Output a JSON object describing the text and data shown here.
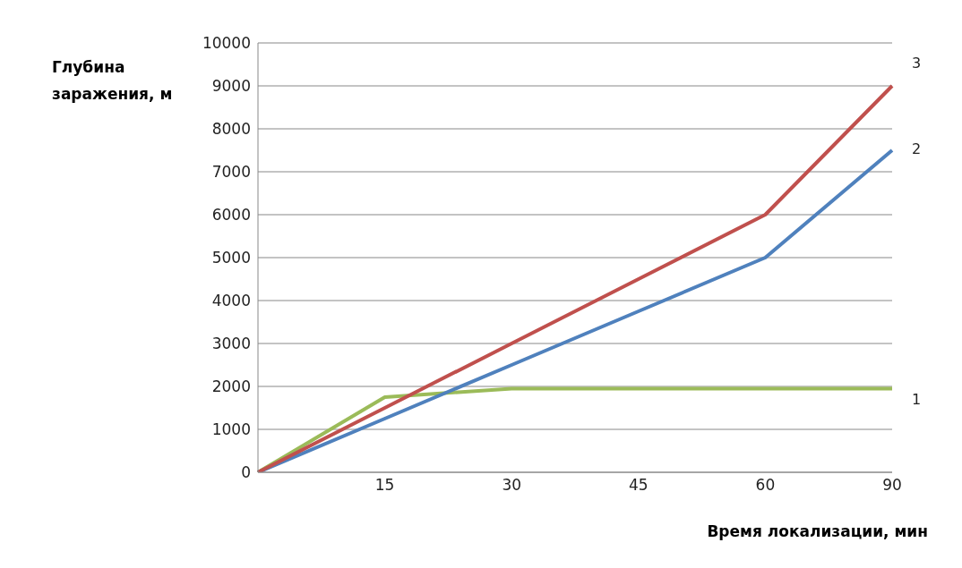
{
  "chart_data": {
    "type": "line",
    "xlabel": "Время локализации, мин",
    "ylabel": "Глубина заражения, м",
    "categories": [
      null,
      "15",
      "30",
      "45",
      "60",
      "90"
    ],
    "series": [
      {
        "name": "1",
        "color": "#9bbb59",
        "values": [
          0,
          1750,
          1950,
          1950,
          1950,
          1950
        ]
      },
      {
        "name": "2",
        "color": "#4f81bd",
        "values": [
          0,
          1250,
          2500,
          3750,
          5000,
          7500
        ]
      },
      {
        "name": "3",
        "color": "#c0504d",
        "values": [
          0,
          1500,
          3000,
          4500,
          6000,
          9000
        ]
      }
    ],
    "ylim": [
      0,
      10000
    ],
    "yticks": [
      0,
      1000,
      2000,
      3000,
      4000,
      5000,
      6000,
      7000,
      8000,
      9000,
      10000
    ],
    "grid": "y",
    "marker": "none",
    "line_style": "solid"
  }
}
